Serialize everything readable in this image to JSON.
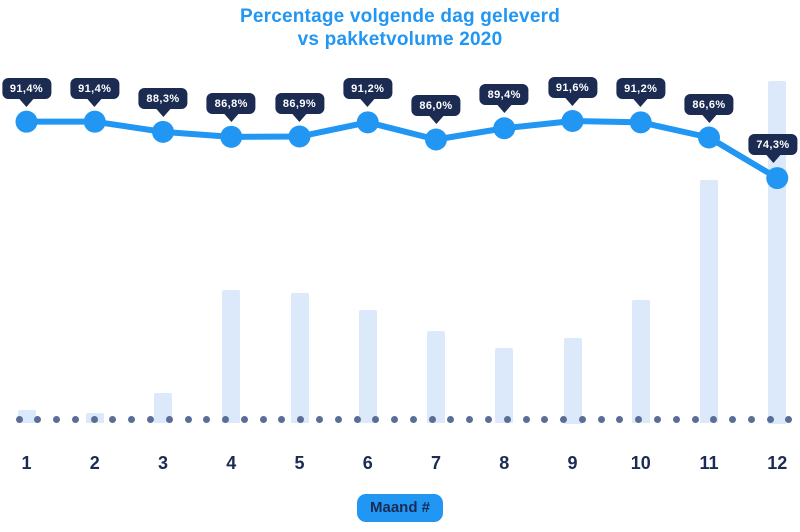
{
  "header": {
    "title_line1": "Percentage volgende dag geleverd",
    "title_line2": "vs pakketvolume 2020"
  },
  "xaxis": {
    "label": "Maand #",
    "categories": [
      "1",
      "2",
      "3",
      "4",
      "5",
      "6",
      "7",
      "8",
      "9",
      "10",
      "11",
      "12"
    ]
  },
  "colors": {
    "accent_blue": "#2196f3",
    "navy": "#1b2b52",
    "bar_fill": "#dbe9fb",
    "baseline_dot": "#5a6d96",
    "tooltip_text": "#ffffff",
    "background": "#ffffff"
  },
  "chart_data": {
    "type": "combo",
    "title": "Percentage volgende dag geleverd vs pakketvolume 2020",
    "xlabel": "Maand #",
    "legend": "none",
    "grid": false,
    "categories": [
      "1",
      "2",
      "3",
      "4",
      "5",
      "6",
      "7",
      "8",
      "9",
      "10",
      "11",
      "12"
    ],
    "series": [
      {
        "name": "Percentage volgende dag geleverd",
        "type": "line",
        "unit": "%",
        "values": [
          91.4,
          91.4,
          88.3,
          86.8,
          86.9,
          91.2,
          86.0,
          89.4,
          91.6,
          91.2,
          86.6,
          74.3
        ],
        "point_labels": [
          "91,4%",
          "91,4%",
          "88,3%",
          "86,8%",
          "86,9%",
          "91,2%",
          "86,0%",
          "89,4%",
          "91,6%",
          "91,2%",
          "86,6%",
          "74,3%"
        ]
      },
      {
        "name": "Pakketvolume 2020",
        "type": "bar",
        "unit": "relative_0_100",
        "values": [
          4,
          3,
          9,
          39,
          38,
          33,
          27,
          22,
          25,
          36,
          71,
          100
        ]
      }
    ]
  }
}
